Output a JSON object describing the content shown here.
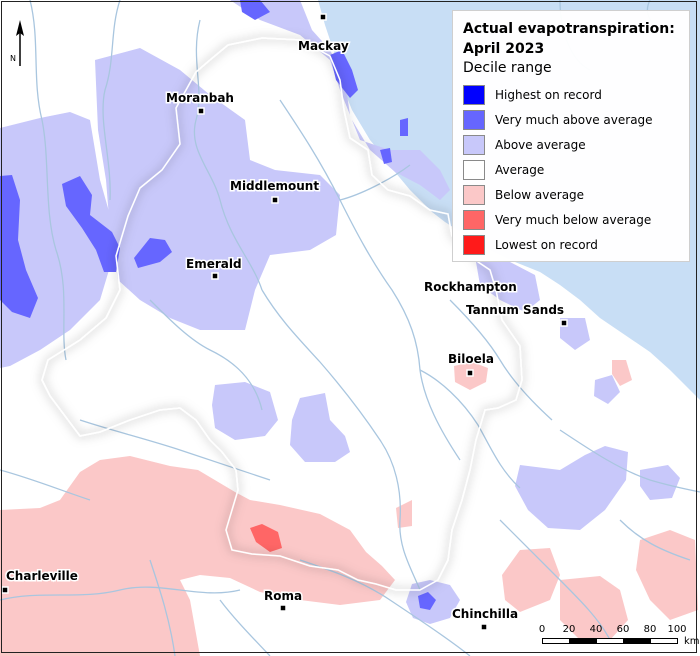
{
  "legend": {
    "title_line1": "Actual evapotranspiration:",
    "title_line2": "April 2023",
    "subtitle": "Decile range",
    "items": [
      {
        "label": "Highest on record",
        "color": "#0000ff"
      },
      {
        "label": "Very much above average",
        "color": "#6666ff"
      },
      {
        "label": "Above average",
        "color": "#c8c8fa"
      },
      {
        "label": "Average",
        "color": "#ffffff"
      },
      {
        "label": "Below average",
        "color": "#fbc8c8"
      },
      {
        "label": "Very much below average",
        "color": "#ff6666"
      },
      {
        "label": "Lowest on record",
        "color": "#ff1a1a"
      }
    ]
  },
  "north_arrow": {
    "label": "N"
  },
  "scale": {
    "ticks": [
      "0",
      "20",
      "40",
      "60",
      "80",
      "100"
    ],
    "unit": "km"
  },
  "places": [
    {
      "name": "Mackay"
    },
    {
      "name": "Moranbah"
    },
    {
      "name": "Middlemount"
    },
    {
      "name": "Emerald"
    },
    {
      "name": "Rockhampton"
    },
    {
      "name": "Tannum Sands"
    },
    {
      "name": "Biloela"
    },
    {
      "name": "Charleville"
    },
    {
      "name": "Roma"
    },
    {
      "name": "Chinchilla"
    }
  ],
  "colors": {
    "sea": "#c8def5",
    "river": "#a9c6df",
    "basin_outside_shade": "#eeeeee"
  }
}
